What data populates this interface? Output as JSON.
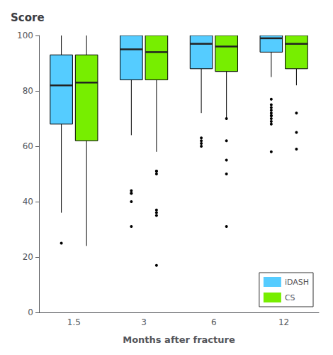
{
  "chart_data": {
    "type": "box",
    "title": "Score",
    "xlabel": "Months after fracture",
    "categories": [
      "1.5",
      "3",
      "6",
      "12"
    ],
    "series": [
      {
        "name": "iDASH",
        "color": "#55CCFF",
        "values": [
          [
            36,
            68,
            82,
            93,
            100
          ],
          [
            64,
            84,
            95,
            100,
            100
          ],
          [
            72,
            88,
            97,
            100,
            100
          ],
          [
            85,
            94,
            99,
            100,
            100
          ]
        ],
        "fliers": [
          [
            25
          ],
          [
            31,
            40,
            43,
            43,
            44
          ],
          [
            60,
            61,
            62,
            63
          ],
          [
            68,
            69,
            70,
            71,
            71,
            72,
            73,
            74,
            75,
            77,
            58
          ]
        ]
      },
      {
        "name": "CS",
        "color": "#77EE00",
        "values": [
          [
            24,
            62,
            83,
            93,
            100
          ],
          [
            58,
            84,
            94,
            100,
            100
          ],
          [
            70,
            87,
            96,
            100,
            100
          ],
          [
            82,
            88,
            97,
            100,
            100
          ]
        ],
        "fliers": [
          [],
          [
            17,
            35,
            36,
            37,
            50,
            51,
            51
          ],
          [
            31,
            50,
            55,
            62,
            70
          ],
          [
            59,
            65,
            72
          ]
        ]
      }
    ],
    "ylim": [
      0,
      100
    ],
    "yticks": [
      0,
      20,
      40,
      60,
      80,
      100
    ],
    "grid": false,
    "legend": "lower right"
  }
}
